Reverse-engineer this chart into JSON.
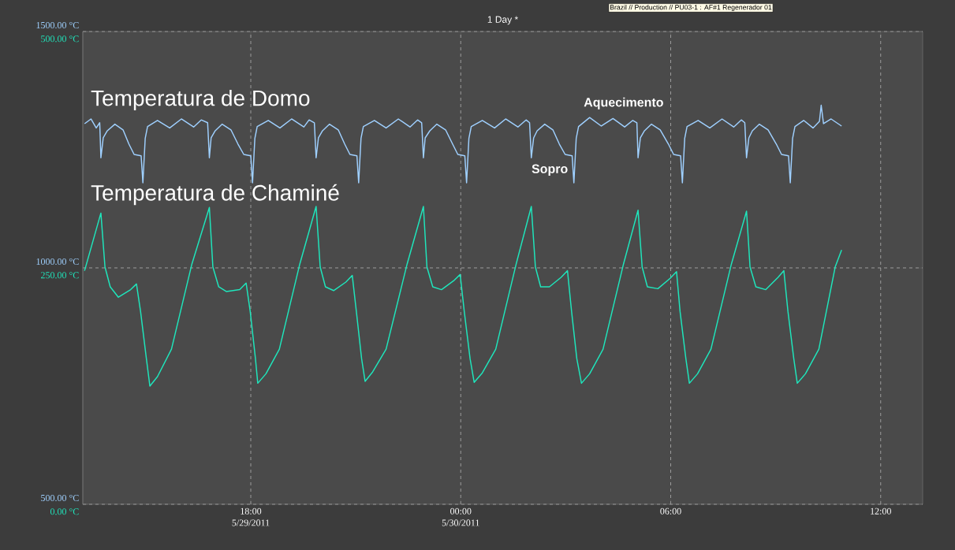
{
  "chart_data": {
    "type": "line",
    "title": "1 Day *",
    "annotations": [
      "Brazil // Production // PU03-1 : AF#1 Regenerador 01",
      "Aquecimento",
      "Sopro"
    ],
    "xlim": [
      "2011-05-29T13:12",
      "2011-05-30T13:12"
    ],
    "xticks": [
      {
        "value": "2011-05-29T18:00",
        "label": "18:00 5/29/2011"
      },
      {
        "value": "2011-05-30T00:00",
        "label": "00:00 5/30/2011"
      },
      {
        "value": "2011-05-30T06:00",
        "label": "06:00"
      },
      {
        "value": "2011-05-30T12:00",
        "label": "12:00"
      }
    ],
    "ylim": [
      500,
      1500
    ],
    "yticks": [
      {
        "value": 500,
        "label": "500.00 °C"
      },
      {
        "value": 1000,
        "label": "1000.00 °C"
      },
      {
        "value": 1500,
        "label": "1500.00 °C"
      }
    ],
    "y2lim": [
      0,
      500
    ],
    "y2ticks": [
      {
        "value": 0,
        "label": "0.00 °C"
      },
      {
        "value": 250,
        "label": "250.00 °C"
      },
      {
        "value": 500,
        "label": "500.00 °C"
      }
    ],
    "grid": true,
    "series": [
      {
        "name": "Temperatura de Domo",
        "color": "#9fd0ff",
        "axis": "y",
        "x": [
          "2011-05-29T13:15",
          "2011-05-29T13:26",
          "2011-05-29T13:35",
          "2011-05-29T13:41",
          "2011-05-29T13:43",
          "2011-05-29T13:47",
          "2011-05-29T13:54",
          "2011-05-29T14:07",
          "2011-05-29T14:21",
          "2011-05-29T14:31",
          "2011-05-29T14:40",
          "2011-05-29T14:52",
          "2011-05-29T14:55",
          "2011-05-29T14:59",
          "2011-05-29T15:03",
          "2011-05-29T15:20",
          "2011-05-29T15:41",
          "2011-05-29T16:01",
          "2011-05-29T16:22",
          "2011-05-29T16:35",
          "2011-05-29T16:46",
          "2011-05-29T16:49",
          "2011-05-29T16:52",
          "2011-05-29T16:59",
          "2011-05-29T17:11",
          "2011-05-29T17:26",
          "2011-05-29T17:38",
          "2011-05-29T17:48",
          "2011-05-29T18:00",
          "2011-05-29T18:03",
          "2011-05-29T18:07",
          "2011-05-29T18:11",
          "2011-05-29T18:30",
          "2011-05-29T18:50",
          "2011-05-29T19:10",
          "2011-05-29T19:31",
          "2011-05-29T19:40",
          "2011-05-29T19:49",
          "2011-05-29T19:52",
          "2011-05-29T19:56",
          "2011-05-29T20:03",
          "2011-05-29T20:15",
          "2011-05-29T20:30",
          "2011-05-29T20:41",
          "2011-05-29T20:50",
          "2011-05-29T21:02",
          "2011-05-29T21:05",
          "2011-05-29T21:09",
          "2011-05-29T21:13",
          "2011-05-29T21:32",
          "2011-05-29T21:52",
          "2011-05-29T22:13",
          "2011-05-29T22:33",
          "2011-05-29T22:46",
          "2011-05-29T22:53",
          "2011-05-29T22:56",
          "2011-05-29T22:59",
          "2011-05-29T23:07",
          "2011-05-29T23:19",
          "2011-05-29T23:34",
          "2011-05-29T23:46",
          "2011-05-29T23:55",
          "2011-05-30T00:07",
          "2011-05-30T00:10",
          "2011-05-30T00:14",
          "2011-05-30T00:18",
          "2011-05-30T00:37",
          "2011-05-30T00:58",
          "2011-05-30T01:17",
          "2011-05-30T01:38",
          "2011-05-30T01:52",
          "2011-05-30T01:58",
          "2011-05-30T02:01",
          "2011-05-30T02:05",
          "2011-05-30T02:11",
          "2011-05-30T02:24",
          "2011-05-30T02:38",
          "2011-05-30T02:49",
          "2011-05-30T02:59",
          "2011-05-30T03:11",
          "2011-05-30T03:14",
          "2011-05-30T03:18",
          "2011-05-30T03:22",
          "2011-05-30T03:41",
          "2011-05-30T04:01",
          "2011-05-30T04:21",
          "2011-05-30T04:41",
          "2011-05-30T04:55",
          "2011-05-30T05:02",
          "2011-05-30T05:04",
          "2011-05-30T05:08",
          "2011-05-30T05:15",
          "2011-05-30T05:27",
          "2011-05-30T05:42",
          "2011-05-30T05:56",
          "2011-05-30T06:05",
          "2011-05-30T06:17",
          "2011-05-30T06:20",
          "2011-05-30T06:24",
          "2011-05-30T06:28",
          "2011-05-30T06:47",
          "2011-05-30T07:07",
          "2011-05-30T07:28",
          "2011-05-30T07:48",
          "2011-05-30T08:01",
          "2011-05-30T08:07",
          "2011-05-30T08:10",
          "2011-05-30T08:14",
          "2011-05-30T08:20",
          "2011-05-30T08:32",
          "2011-05-30T08:47",
          "2011-05-30T09:01",
          "2011-05-30T09:10",
          "2011-05-30T09:22",
          "2011-05-30T09:25",
          "2011-05-30T09:29",
          "2011-05-30T09:33",
          "2011-05-30T09:48",
          "2011-05-30T10:04",
          "2011-05-30T10:15",
          "2011-05-30T10:18",
          "2011-05-30T10:22",
          "2011-05-30T10:35",
          "2011-05-30T10:53"
        ],
        "values": [
          1305,
          1315,
          1296,
          1307,
          1233,
          1275,
          1290,
          1304,
          1292,
          1262,
          1240,
          1237,
          1180,
          1274,
          1299,
          1312,
          1296,
          1315,
          1298,
          1313,
          1307,
          1233,
          1275,
          1290,
          1304,
          1292,
          1262,
          1240,
          1237,
          1180,
          1274,
          1299,
          1312,
          1296,
          1315,
          1298,
          1313,
          1307,
          1233,
          1275,
          1290,
          1304,
          1292,
          1262,
          1240,
          1237,
          1180,
          1274,
          1299,
          1312,
          1296,
          1315,
          1298,
          1313,
          1307,
          1233,
          1275,
          1290,
          1304,
          1292,
          1262,
          1240,
          1237,
          1180,
          1274,
          1299,
          1312,
          1296,
          1315,
          1298,
          1313,
          1307,
          1233,
          1275,
          1290,
          1304,
          1292,
          1262,
          1240,
          1237,
          1180,
          1274,
          1299,
          1318,
          1300,
          1316,
          1298,
          1312,
          1307,
          1233,
          1275,
          1290,
          1304,
          1292,
          1262,
          1240,
          1237,
          1180,
          1274,
          1299,
          1312,
          1296,
          1315,
          1298,
          1313,
          1307,
          1233,
          1275,
          1290,
          1304,
          1292,
          1262,
          1240,
          1237,
          1180,
          1274,
          1299,
          1312,
          1296,
          1310,
          1344,
          1305,
          1315,
          1300
        ]
      },
      {
        "name": "Temperatura de Chaminé",
        "color": "#1fe6bc",
        "axis": "y2",
        "x": [
          "2011-05-29T13:15",
          "2011-05-29T13:43",
          "2011-05-29T13:50",
          "2011-05-29T13:59",
          "2011-05-29T14:13",
          "2011-05-29T14:34",
          "2011-05-29T14:44",
          "2011-05-29T14:51",
          "2011-05-29T15:01",
          "2011-05-29T15:07",
          "2011-05-29T15:20",
          "2011-05-29T15:44",
          "2011-05-29T16:19",
          "2011-05-29T16:49",
          "2011-05-29T16:55",
          "2011-05-29T17:05",
          "2011-05-29T17:18",
          "2011-05-29T17:41",
          "2011-05-29T17:52",
          "2011-05-29T17:59",
          "2011-05-29T18:08",
          "2011-05-29T18:12",
          "2011-05-29T18:26",
          "2011-05-29T18:49",
          "2011-05-29T19:24",
          "2011-05-29T19:52",
          "2011-05-29T19:59",
          "2011-05-29T20:08",
          "2011-05-29T20:22",
          "2011-05-29T20:43",
          "2011-05-29T20:54",
          "2011-05-29T21:01",
          "2011-05-29T21:10",
          "2011-05-29T21:16",
          "2011-05-29T21:29",
          "2011-05-29T21:52",
          "2011-05-29T22:28",
          "2011-05-29T22:56",
          "2011-05-29T23:02",
          "2011-05-29T23:12",
          "2011-05-29T23:27",
          "2011-05-29T23:49",
          "2011-05-29T23:59",
          "2011-05-30T00:06",
          "2011-05-30T00:16",
          "2011-05-30T00:23",
          "2011-05-30T00:37",
          "2011-05-30T01:00",
          "2011-05-30T01:35",
          "2011-05-30T02:01",
          "2011-05-30T02:08",
          "2011-05-30T02:17",
          "2011-05-30T02:32",
          "2011-05-30T02:52",
          "2011-05-30T03:03",
          "2011-05-30T03:10",
          "2011-05-30T03:19",
          "2011-05-30T03:27",
          "2011-05-30T03:41",
          "2011-05-30T04:04",
          "2011-05-30T04:39",
          "2011-05-30T05:04",
          "2011-05-30T05:11",
          "2011-05-30T05:20",
          "2011-05-30T05:38",
          "2011-05-30T05:59",
          "2011-05-30T06:10",
          "2011-05-30T06:16",
          "2011-05-30T06:26",
          "2011-05-30T06:32",
          "2011-05-30T06:46",
          "2011-05-30T07:09",
          "2011-05-30T07:44",
          "2011-05-30T08:10",
          "2011-05-30T08:16",
          "2011-05-30T08:26",
          "2011-05-30T08:43",
          "2011-05-30T09:04",
          "2011-05-30T09:14",
          "2011-05-30T09:21",
          "2011-05-30T09:31",
          "2011-05-30T09:37",
          "2011-05-30T09:51",
          "2011-05-30T10:14",
          "2011-05-30T10:42",
          "2011-05-30T10:53"
        ],
        "values": [
          247,
          308,
          251,
          230,
          219,
          227,
          233,
          204,
          154,
          125,
          135,
          164,
          254,
          314,
          251,
          230,
          225,
          227,
          234,
          204,
          154,
          128,
          138,
          164,
          254,
          315,
          251,
          230,
          226,
          235,
          242,
          204,
          154,
          130,
          140,
          164,
          254,
          315,
          251,
          230,
          227,
          237,
          243,
          204,
          154,
          129,
          139,
          164,
          254,
          315,
          251,
          230,
          230,
          240,
          247,
          204,
          154,
          128,
          138,
          164,
          254,
          311,
          251,
          230,
          228,
          239,
          246,
          204,
          154,
          128,
          138,
          164,
          254,
          310,
          251,
          230,
          227,
          240,
          247,
          204,
          154,
          128,
          138,
          164,
          251,
          269
        ]
      }
    ]
  }
}
